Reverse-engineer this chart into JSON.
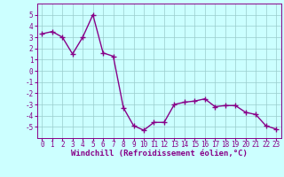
{
  "x": [
    0,
    1,
    2,
    3,
    4,
    5,
    6,
    7,
    8,
    9,
    10,
    11,
    12,
    13,
    14,
    15,
    16,
    17,
    18,
    19,
    20,
    21,
    22,
    23
  ],
  "y": [
    3.3,
    3.5,
    3.0,
    1.5,
    3.0,
    5.0,
    1.6,
    1.3,
    -3.3,
    -4.9,
    -5.3,
    -4.6,
    -4.6,
    -3.0,
    -2.8,
    -2.7,
    -2.5,
    -3.2,
    -3.1,
    -3.1,
    -3.7,
    -3.9,
    -4.9,
    -5.2
  ],
  "line_color": "#880088",
  "marker": "+",
  "markersize": 4,
  "linewidth": 1.0,
  "markeredgewidth": 1.0,
  "bg_color": "#ccffff",
  "grid_color": "#99cccc",
  "xlabel": "Windchill (Refroidissement éolien,°C)",
  "xlabel_fontsize": 6.5,
  "tick_fontsize": 5.5,
  "ylim": [
    -6,
    6
  ],
  "yticks": [
    -5,
    -4,
    -3,
    -2,
    -1,
    0,
    1,
    2,
    3,
    4,
    5
  ],
  "fig_width": 3.2,
  "fig_height": 2.0,
  "dpi": 100
}
